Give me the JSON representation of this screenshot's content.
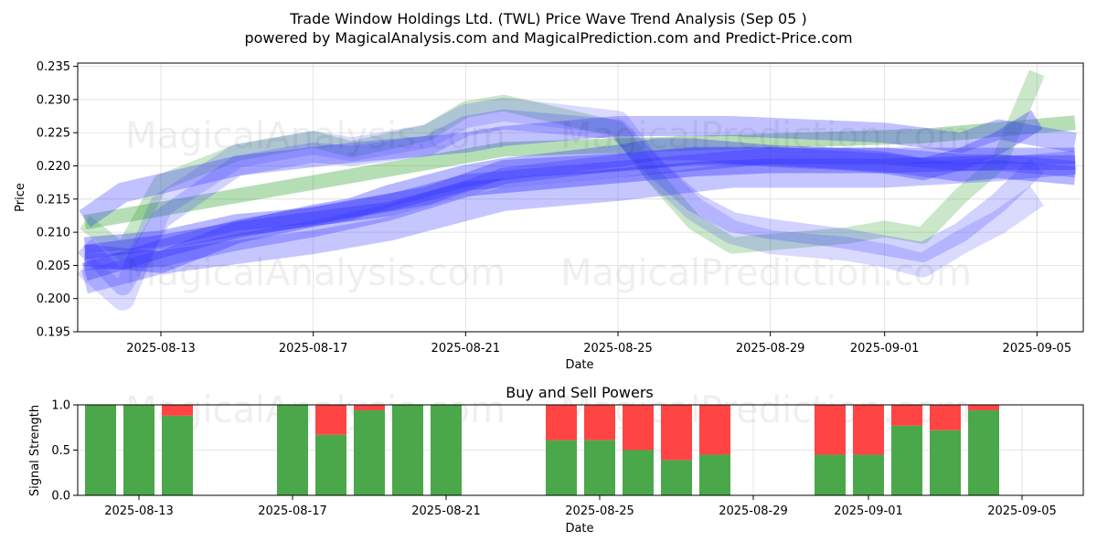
{
  "title_line1": "Trade Window Holdings Ltd. (TWL) Price Wave Trend Analysis (Sep 05 )",
  "title_line2": "powered by MagicalAnalysis.com and MagicalPrediction.com and Predict-Price.com",
  "watermarks": [
    "MagicalAnalysis.com",
    "MagicalPrediction.com"
  ],
  "colors": {
    "green": "#2ca02c",
    "blue": "#3333ff",
    "buy": "#4aa84a",
    "sell": "#ff4444",
    "grid": "#dddddd"
  },
  "chart_data": [
    {
      "type": "area",
      "xlabel": "Date",
      "ylabel": "Price",
      "ylim": [
        0.195,
        0.2355
      ],
      "y_ticks": [
        "0.195",
        "0.200",
        "0.205",
        "0.210",
        "0.215",
        "0.220",
        "0.225",
        "0.230",
        "0.235"
      ],
      "x_ticks": [
        "2025-08-13",
        "2025-08-17",
        "2025-08-21",
        "2025-08-25",
        "2025-08-29",
        "2025-09-01",
        "2025-09-05"
      ],
      "grid": true,
      "series": [
        {
          "color": "green",
          "points": [
            [
              "2025-08-11",
              0.2115
            ],
            [
              "2025-08-12",
              0.207
            ],
            [
              "2025-08-13",
              0.2175
            ],
            [
              "2025-08-15",
              0.222
            ],
            [
              "2025-08-17",
              0.224
            ],
            [
              "2025-08-18",
              0.2225
            ],
            [
              "2025-08-20",
              0.225
            ],
            [
              "2025-08-21",
              0.2285
            ],
            [
              "2025-08-22",
              0.2295
            ],
            [
              "2025-08-25",
              0.2255
            ],
            [
              "2025-08-26",
              0.218
            ],
            [
              "2025-08-27",
              0.2115
            ],
            [
              "2025-08-28",
              0.208
            ],
            [
              "2025-08-29",
              0.2085
            ],
            [
              "2025-08-31",
              0.2095
            ],
            [
              "2025-09-01",
              0.2105
            ],
            [
              "2025-09-02",
              0.2095
            ],
            [
              "2025-09-03",
              0.2155
            ],
            [
              "2025-09-04",
              0.2205
            ],
            [
              "2025-09-05",
              0.234
            ]
          ]
        },
        {
          "color": "green",
          "points": [
            [
              "2025-08-11",
              0.2115
            ],
            [
              "2025-08-22",
              0.2225
            ],
            [
              "2025-09-02",
              0.2245
            ],
            [
              "2025-09-06",
              0.2265
            ]
          ]
        },
        {
          "color": "blue",
          "points": [
            [
              "2025-08-11",
              0.205
            ],
            [
              "2025-08-12",
              0.2
            ],
            [
              "2025-08-13",
              0.214
            ],
            [
              "2025-08-15",
              0.2215
            ],
            [
              "2025-08-17",
              0.2235
            ],
            [
              "2025-08-18",
              0.2225
            ],
            [
              "2025-08-20",
              0.2245
            ],
            [
              "2025-08-21",
              0.2275
            ],
            [
              "2025-08-22",
              0.2285
            ],
            [
              "2025-08-25",
              0.2265
            ],
            [
              "2025-08-26",
              0.219
            ],
            [
              "2025-08-27",
              0.2135
            ],
            [
              "2025-08-28",
              0.21
            ],
            [
              "2025-08-29",
              0.2085
            ],
            [
              "2025-08-31",
              0.2075
            ],
            [
              "2025-09-01",
              0.2065
            ],
            [
              "2025-09-02",
              0.205
            ],
            [
              "2025-09-03",
              0.2085
            ],
            [
              "2025-09-04",
              0.2115
            ],
            [
              "2025-09-05",
              0.2155
            ]
          ]
        },
        {
          "color": "blue",
          "points": [
            [
              "2025-08-11",
              0.208
            ],
            [
              "2025-08-12",
              0.202
            ],
            [
              "2025-08-13",
              0.212
            ],
            [
              "2025-08-15",
              0.22
            ],
            [
              "2025-08-17",
              0.222
            ],
            [
              "2025-08-18",
              0.2215
            ],
            [
              "2025-08-20",
              0.223
            ],
            [
              "2025-08-21",
              0.226
            ],
            [
              "2025-08-22",
              0.227
            ],
            [
              "2025-08-25",
              0.2255
            ],
            [
              "2025-08-26",
              0.2195
            ],
            [
              "2025-08-27",
              0.2145
            ],
            [
              "2025-08-28",
              0.2115
            ],
            [
              "2025-08-29",
              0.2105
            ],
            [
              "2025-08-31",
              0.209
            ],
            [
              "2025-09-01",
              0.208
            ],
            [
              "2025-09-02",
              0.207
            ],
            [
              "2025-09-03",
              0.21
            ],
            [
              "2025-09-04",
              0.2145
            ],
            [
              "2025-09-05",
              0.22
            ]
          ]
        },
        {
          "color": "blue",
          "points": [
            [
              "2025-08-11",
              0.2065
            ],
            [
              "2025-08-13",
              0.2055
            ],
            [
              "2025-08-15",
              0.21
            ],
            [
              "2025-08-17",
              0.2125
            ],
            [
              "2025-08-18",
              0.2135
            ],
            [
              "2025-08-19",
              0.2155
            ],
            [
              "2025-08-21",
              0.2185
            ],
            [
              "2025-08-22",
              0.2195
            ],
            [
              "2025-08-25",
              0.2215
            ],
            [
              "2025-08-26",
              0.2225
            ],
            [
              "2025-08-27",
              0.2225
            ],
            [
              "2025-08-29",
              0.2215
            ],
            [
              "2025-08-31",
              0.221
            ],
            [
              "2025-09-01",
              0.2205
            ],
            [
              "2025-09-02",
              0.2195
            ],
            [
              "2025-09-03",
              0.221
            ],
            [
              "2025-09-04",
              0.2235
            ],
            [
              "2025-09-05",
              0.227
            ]
          ]
        },
        {
          "color": "blue",
          "points": [
            [
              "2025-08-11",
              0.204
            ],
            [
              "2025-08-13",
              0.2075
            ],
            [
              "2025-08-15",
              0.2105
            ],
            [
              "2025-08-17",
              0.2125
            ],
            [
              "2025-08-18",
              0.2135
            ],
            [
              "2025-08-20",
              0.2155
            ],
            [
              "2025-08-21",
              0.2175
            ],
            [
              "2025-08-22",
              0.2195
            ],
            [
              "2025-08-25",
              0.2205
            ],
            [
              "2025-08-27",
              0.2215
            ],
            [
              "2025-08-29",
              0.2215
            ],
            [
              "2025-09-01",
              0.2205
            ],
            [
              "2025-09-03",
              0.219
            ],
            [
              "2025-09-04",
              0.2195
            ],
            [
              "2025-09-06",
              0.2185
            ]
          ]
        },
        {
          "color": "blue",
          "points": [
            [
              "2025-08-11",
              0.2055
            ],
            [
              "2025-08-13",
              0.206
            ],
            [
              "2025-08-15",
              0.2085
            ],
            [
              "2025-08-17",
              0.2105
            ],
            [
              "2025-08-19",
              0.213
            ],
            [
              "2025-08-21",
              0.2165
            ],
            [
              "2025-08-22",
              0.2185
            ],
            [
              "2025-08-25",
              0.2205
            ],
            [
              "2025-08-27",
              0.2215
            ],
            [
              "2025-08-29",
              0.2215
            ],
            [
              "2025-09-01",
              0.2215
            ],
            [
              "2025-09-03",
              0.2205
            ],
            [
              "2025-09-04",
              0.2205
            ],
            [
              "2025-09-06",
              0.2195
            ]
          ]
        },
        {
          "color": "blue",
          "points": [
            [
              "2025-08-11",
              0.2025
            ],
            [
              "2025-08-13",
              0.2055
            ],
            [
              "2025-08-15",
              0.207
            ],
            [
              "2025-08-17",
              0.2085
            ],
            [
              "2025-08-19",
              0.2105
            ],
            [
              "2025-08-21",
              0.2135
            ],
            [
              "2025-08-22",
              0.215
            ],
            [
              "2025-08-25",
              0.2165
            ],
            [
              "2025-08-28",
              0.2185
            ],
            [
              "2025-09-01",
              0.2185
            ],
            [
              "2025-09-04",
              0.2195
            ],
            [
              "2025-09-06",
              0.2205
            ]
          ]
        },
        {
          "color": "blue",
          "points": [
            [
              "2025-08-11",
              0.212
            ],
            [
              "2025-08-12",
              0.216
            ],
            [
              "2025-08-15",
              0.22
            ],
            [
              "2025-08-18",
              0.222
            ],
            [
              "2025-08-21",
              0.2235
            ],
            [
              "2025-08-22",
              0.2245
            ],
            [
              "2025-08-25",
              0.226
            ],
            [
              "2025-08-28",
              0.226
            ],
            [
              "2025-09-01",
              0.225
            ],
            [
              "2025-09-03",
              0.2235
            ],
            [
              "2025-09-04",
              0.2255
            ],
            [
              "2025-09-06",
              0.2235
            ]
          ]
        },
        {
          "color": "blue",
          "points": [
            [
              "2025-08-11",
              0.208
            ],
            [
              "2025-08-13",
              0.209
            ],
            [
              "2025-08-15",
              0.2115
            ],
            [
              "2025-08-17",
              0.2125
            ],
            [
              "2025-08-19",
              0.2145
            ],
            [
              "2025-08-21",
              0.2175
            ],
            [
              "2025-08-23",
              0.2185
            ],
            [
              "2025-08-25",
              0.2195
            ],
            [
              "2025-08-27",
              0.2205
            ],
            [
              "2025-08-29",
              0.2215
            ],
            [
              "2025-09-01",
              0.2215
            ],
            [
              "2025-09-04",
              0.2215
            ],
            [
              "2025-09-06",
              0.2215
            ]
          ]
        },
        {
          "color": "blue",
          "points": [
            [
              "2025-08-11",
              0.207
            ],
            [
              "2025-08-13",
              0.2085
            ],
            [
              "2025-08-15",
              0.2105
            ],
            [
              "2025-08-17",
              0.212
            ],
            [
              "2025-08-19",
              0.2135
            ],
            [
              "2025-08-21",
              0.2165
            ],
            [
              "2025-08-23",
              0.2175
            ],
            [
              "2025-08-25",
              0.2185
            ],
            [
              "2025-08-27",
              0.2195
            ],
            [
              "2025-08-29",
              0.22
            ],
            [
              "2025-09-01",
              0.22
            ],
            [
              "2025-09-04",
              0.2205
            ],
            [
              "2025-09-06",
              0.2205
            ]
          ]
        }
      ]
    },
    {
      "type": "bar",
      "title": "Buy and Sell Powers",
      "xlabel": "Date",
      "ylabel": "Signal Strength",
      "ylim": [
        0,
        1
      ],
      "y_ticks": [
        "0.0",
        "0.5",
        "1.0"
      ],
      "x_ticks": [
        "2025-08-13",
        "2025-08-17",
        "2025-08-21",
        "2025-08-25",
        "2025-08-29",
        "2025-09-01",
        "2025-09-05"
      ],
      "grid": true,
      "categories": [
        "2025-08-12",
        "2025-08-13",
        "2025-08-14",
        "2025-08-17",
        "2025-08-18",
        "2025-08-19",
        "2025-08-20",
        "2025-08-21",
        "2025-08-24",
        "2025-08-25",
        "2025-08-26",
        "2025-08-27",
        "2025-08-28",
        "2025-08-31",
        "2025-09-01",
        "2025-09-02",
        "2025-09-03",
        "2025-09-04"
      ],
      "series": [
        {
          "name": "Buy",
          "color": "buy",
          "values": [
            1.0,
            1.0,
            0.88,
            1.0,
            0.67,
            0.94,
            1.0,
            1.0,
            0.61,
            0.61,
            0.5,
            0.39,
            0.45,
            0.45,
            0.45,
            0.77,
            0.72,
            0.94
          ]
        },
        {
          "name": "Sell",
          "color": "sell",
          "values": [
            0.0,
            0.0,
            0.12,
            0.0,
            0.33,
            0.06,
            0.0,
            0.0,
            0.39,
            0.39,
            0.5,
            0.61,
            0.55,
            0.55,
            0.55,
            0.23,
            0.28,
            0.06
          ]
        }
      ]
    }
  ]
}
